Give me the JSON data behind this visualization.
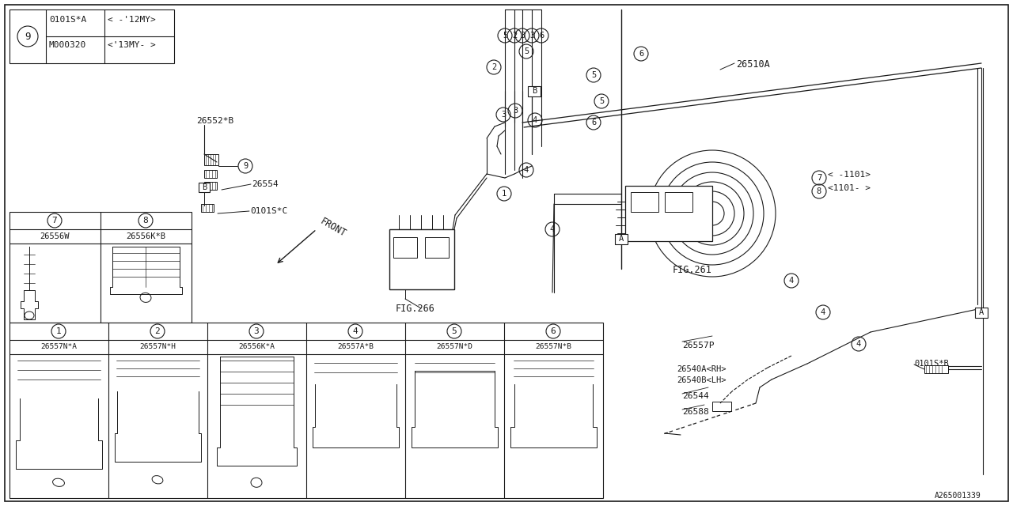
{
  "fig_number": "A265001339",
  "background_color": "#ffffff",
  "line_color": "#1a1a1a",
  "font_family": "monospace",
  "top_table": {
    "circle": "9",
    "rows": [
      [
        "0101S*A",
        "< -'12MY>"
      ],
      [
        "M000320",
        "<'13MY- >"
      ]
    ]
  },
  "upper_table": {
    "circle_nums": [
      "7",
      "8"
    ],
    "part_codes": [
      "26556W",
      "26556K*B"
    ]
  },
  "lower_table": {
    "circle_nums": [
      "1",
      "2",
      "3",
      "4",
      "5",
      "6"
    ],
    "part_codes": [
      "26557N*A",
      "26557N*H",
      "26556K*A",
      "26557A*B",
      "26557N*D",
      "26557N*B"
    ]
  },
  "labels": {
    "26552B": "26552*B",
    "26554": "26554",
    "0101SC": "0101S*C",
    "26510A": "26510A",
    "FIG266": "FIG.266",
    "FIG261": "FIG.261",
    "7range": "7< -1101>",
    "8range": "8<1101- >",
    "26557P": "26557P",
    "26540A": "26540A<RH>",
    "26540B": "26540B<LH>",
    "26544": "26544",
    "26588": "26588",
    "0101SB": "0101S*B",
    "FRONT": "FRONT"
  }
}
